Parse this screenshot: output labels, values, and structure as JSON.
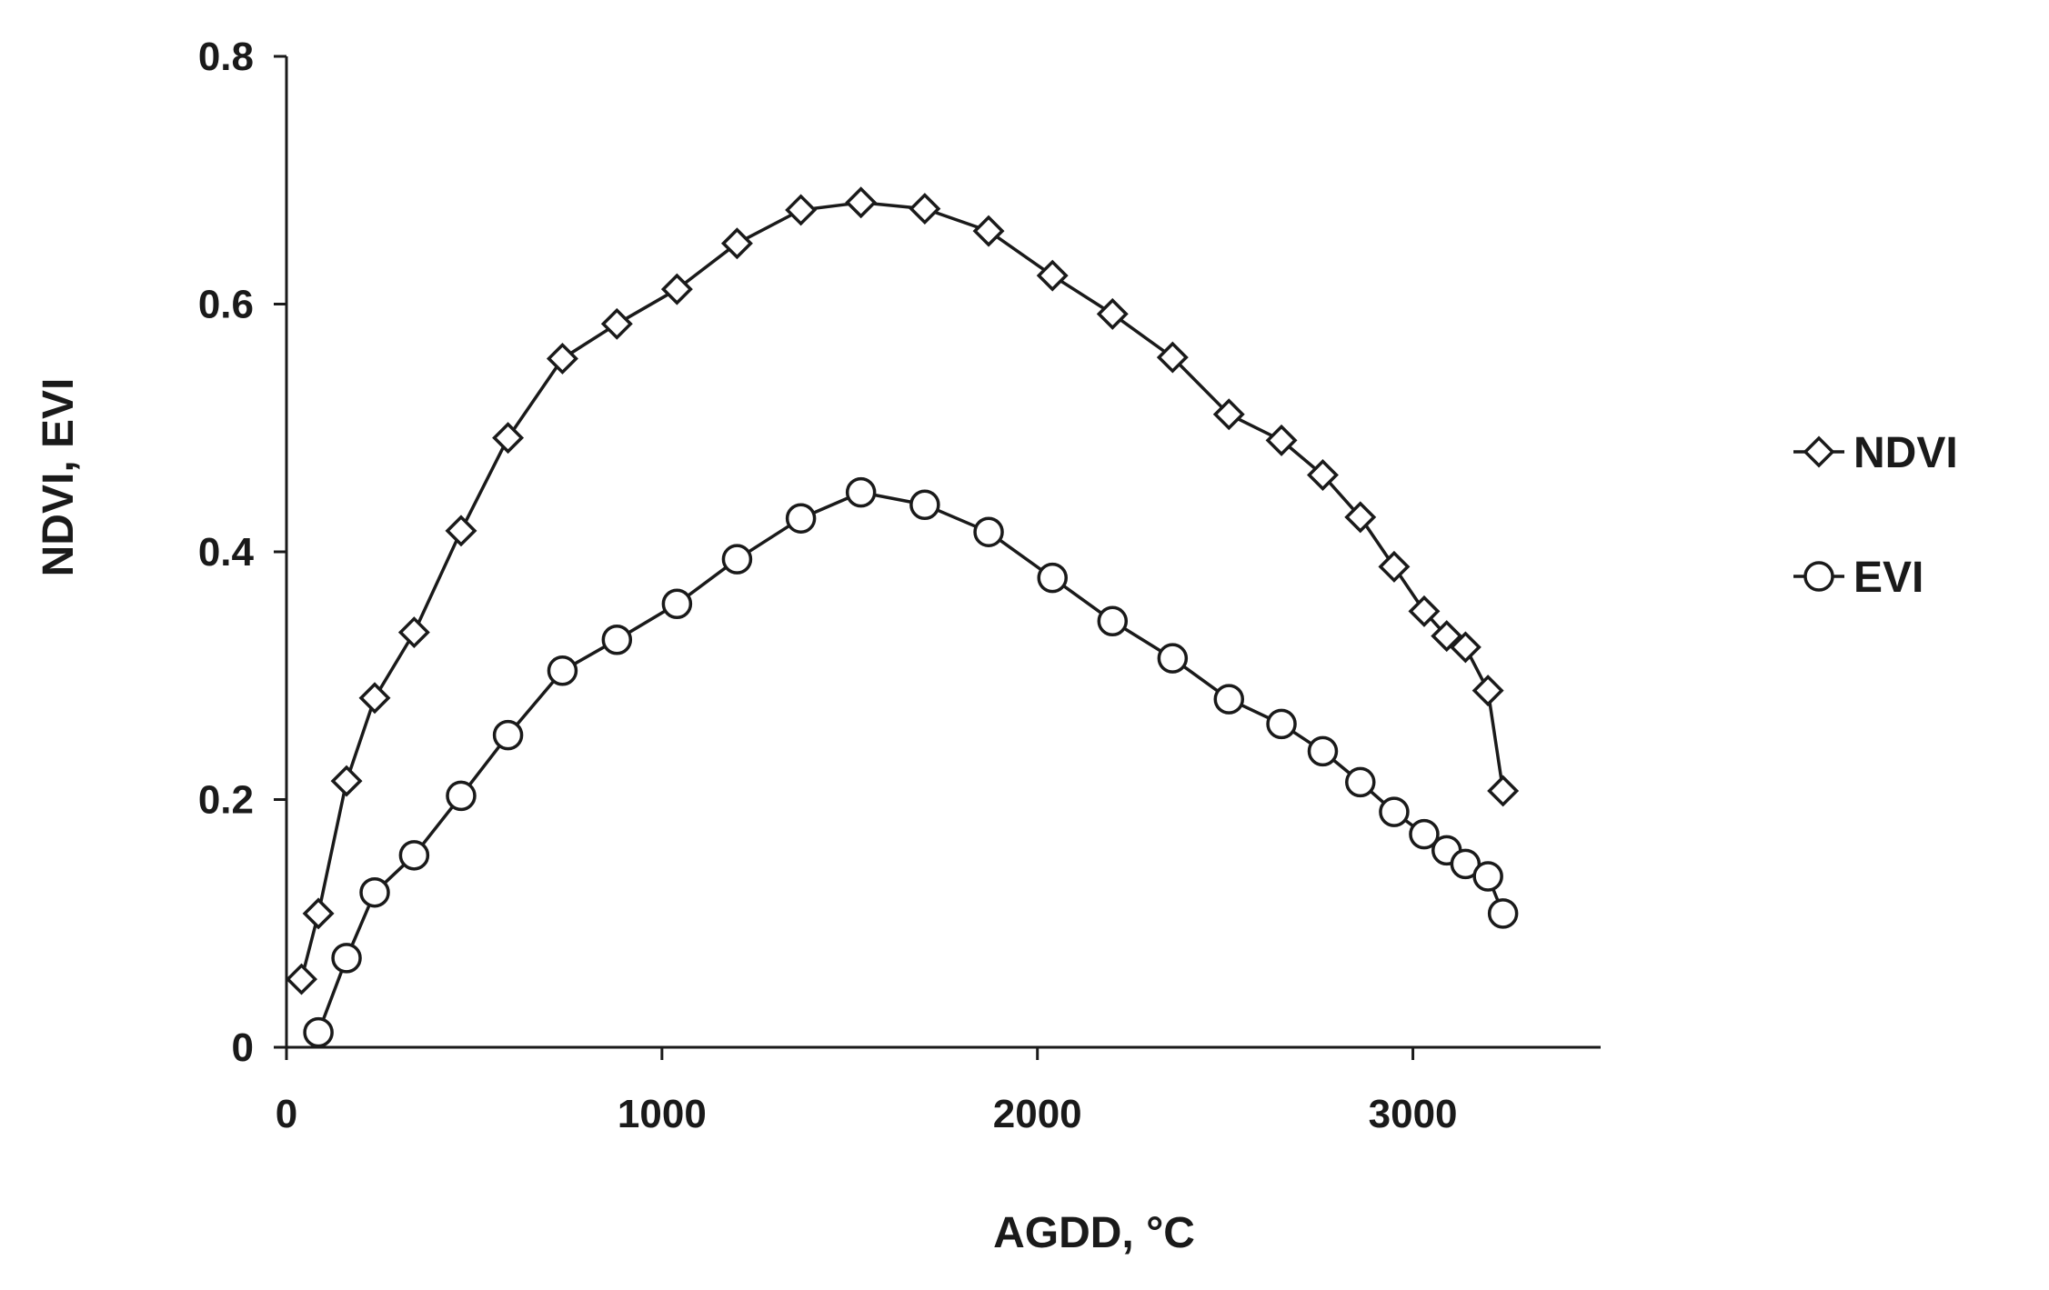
{
  "chart_data": {
    "type": "line",
    "xlabel": "AGDD, °C",
    "ylabel": "NDVI, EVI",
    "xlim": [
      0,
      3500
    ],
    "ylim": [
      0,
      0.8
    ],
    "xticks": [
      0,
      1000,
      2000,
      3000
    ],
    "yticks": [
      0,
      0.2,
      0.4,
      0.6,
      0.8
    ],
    "xtick_labels": [
      "0",
      "1000",
      "2000",
      "3000"
    ],
    "ytick_labels": [
      "0",
      "0.2",
      "0.4",
      "0.6",
      "0.8"
    ],
    "grid": false,
    "legend_position": "right",
    "series": [
      {
        "name": "NDVI",
        "marker": "diamond",
        "color": "#1a1a1a",
        "x": [
          40,
          85,
          160,
          235,
          340,
          465,
          590,
          735,
          880,
          1040,
          1200,
          1370,
          1530,
          1700,
          1870,
          2040,
          2200,
          2360,
          2510,
          2650,
          2760,
          2860,
          2950,
          3030,
          3090,
          3140,
          3200,
          3240
        ],
        "y": [
          0.055,
          0.108,
          0.215,
          0.282,
          0.335,
          0.417,
          0.492,
          0.556,
          0.584,
          0.612,
          0.649,
          0.676,
          0.682,
          0.677,
          0.659,
          0.623,
          0.592,
          0.557,
          0.511,
          0.49,
          0.462,
          0.428,
          0.388,
          0.352,
          0.332,
          0.323,
          0.288,
          0.207
        ]
      },
      {
        "name": "EVI",
        "marker": "circle",
        "color": "#1a1a1a",
        "x": [
          85,
          160,
          235,
          340,
          465,
          590,
          735,
          880,
          1040,
          1200,
          1370,
          1530,
          1700,
          1870,
          2040,
          2200,
          2360,
          2510,
          2650,
          2760,
          2860,
          2950,
          3030,
          3090,
          3140,
          3200,
          3240
        ],
        "y": [
          0.012,
          0.072,
          0.125,
          0.155,
          0.203,
          0.252,
          0.304,
          0.329,
          0.358,
          0.394,
          0.427,
          0.448,
          0.438,
          0.416,
          0.379,
          0.344,
          0.314,
          0.281,
          0.261,
          0.239,
          0.214,
          0.19,
          0.172,
          0.159,
          0.148,
          0.138,
          0.108
        ]
      }
    ]
  }
}
